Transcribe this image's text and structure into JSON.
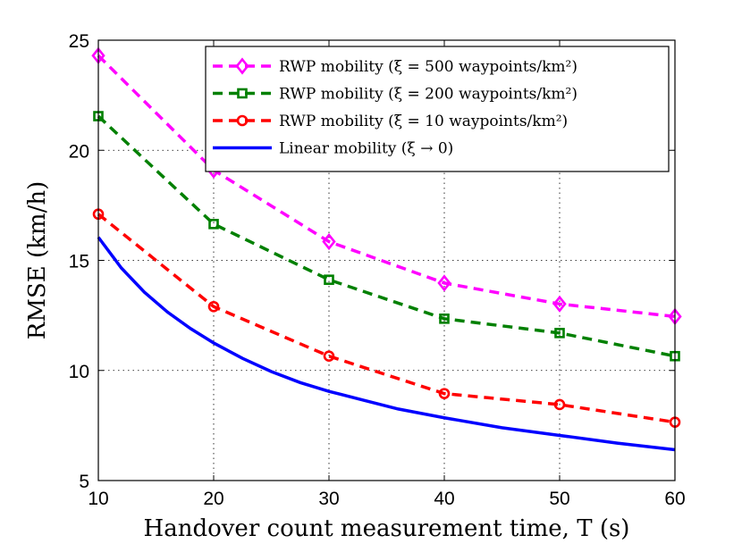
{
  "chart_data": {
    "type": "line",
    "title": "",
    "xlabel": "Handover count measurement time, T (s)",
    "ylabel": "RMSE (km/h)",
    "xlim": [
      10,
      60
    ],
    "ylim": [
      5,
      25
    ],
    "xticks": [
      10,
      20,
      30,
      40,
      50,
      60
    ],
    "yticks": [
      5,
      10,
      15,
      20,
      25
    ],
    "grid": true,
    "legend_position": "top-right",
    "series": [
      {
        "name": "RWP mobility (ξ = 500 waypoints/km²)",
        "color": "#ff00ff",
        "line": "dashed",
        "marker": "diamond",
        "x": [
          10,
          20,
          30,
          40,
          50,
          60
        ],
        "values": [
          24.3,
          19.1,
          15.85,
          13.97,
          13.02,
          12.45
        ]
      },
      {
        "name": "RWP mobility (ξ = 200 waypoints/km²)",
        "color": "#008000",
        "line": "dashed",
        "marker": "square",
        "x": [
          10,
          20,
          30,
          40,
          50,
          60
        ],
        "values": [
          21.55,
          16.65,
          14.12,
          12.35,
          11.7,
          10.65
        ]
      },
      {
        "name": "RWP mobility (ξ = 10 waypoints/km²)",
        "color": "#ff0000",
        "line": "dashed",
        "marker": "circle",
        "x": [
          10,
          20,
          30,
          40,
          50,
          60
        ],
        "values": [
          17.1,
          12.9,
          10.65,
          8.95,
          8.45,
          7.65
        ]
      },
      {
        "name": "Linear mobility (ξ → 0)",
        "color": "#0000ff",
        "line": "solid",
        "marker": "none",
        "x": [
          10,
          12,
          14,
          16,
          18,
          20,
          22.5,
          25,
          27.5,
          30,
          33,
          36,
          40,
          45,
          50,
          55,
          60
        ],
        "values": [
          16.05,
          14.65,
          13.55,
          12.65,
          11.9,
          11.25,
          10.55,
          9.95,
          9.45,
          9.05,
          8.65,
          8.25,
          7.85,
          7.4,
          7.05,
          6.7,
          6.4
        ]
      }
    ]
  }
}
